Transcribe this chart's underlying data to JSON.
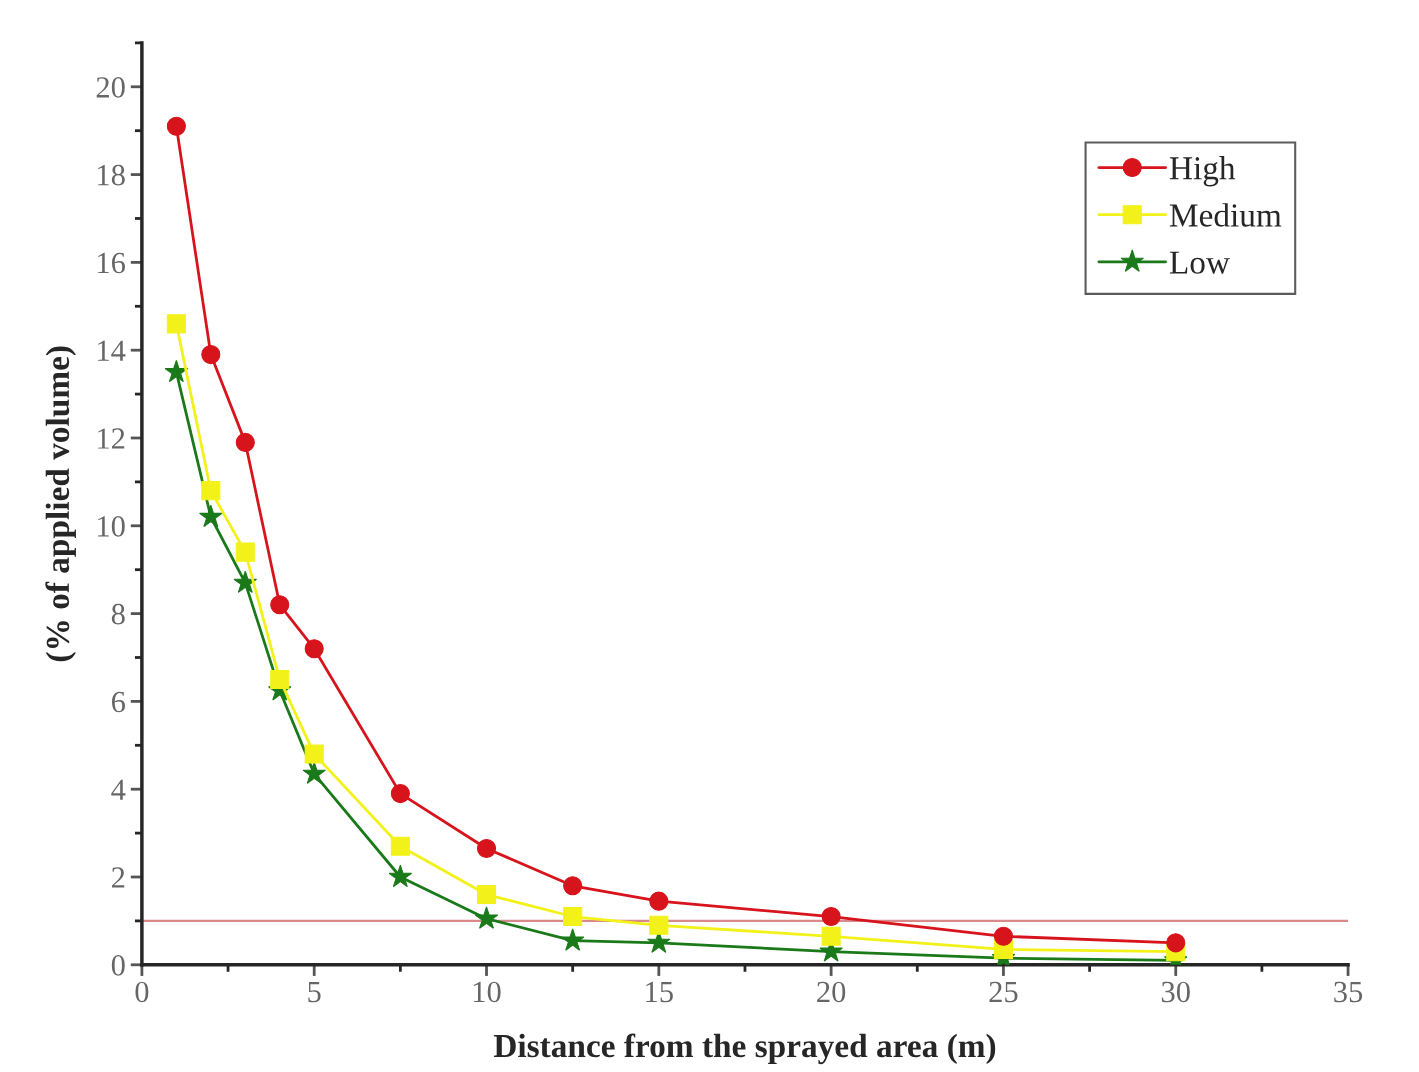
{
  "chart_data": {
    "type": "line",
    "xlabel": "Distance from the sprayed area (m)",
    "ylabel": "(% of applied volume)",
    "x": [
      1,
      2,
      3,
      4,
      5,
      7.5,
      10,
      12.5,
      15,
      20,
      25,
      30
    ],
    "series": [
      {
        "name": "High",
        "color": "#d7141c",
        "marker": "circle",
        "values": [
          19.1,
          13.9,
          11.9,
          8.2,
          7.2,
          3.9,
          2.65,
          1.8,
          1.45,
          1.1,
          0.65,
          0.5
        ]
      },
      {
        "name": "Medium",
        "color": "#f2f21a",
        "marker": "square",
        "values": [
          14.6,
          10.8,
          9.4,
          6.5,
          4.8,
          2.7,
          1.6,
          1.1,
          0.9,
          0.65,
          0.35,
          0.3
        ]
      },
      {
        "name": "Low",
        "color": "#1a7a1a",
        "marker": "star",
        "values": [
          13.5,
          10.2,
          8.7,
          6.25,
          4.35,
          2.0,
          1.05,
          0.55,
          0.5,
          0.3,
          0.15,
          0.1
        ]
      }
    ],
    "xlim": [
      0,
      35
    ],
    "xticks": [
      0,
      5,
      10,
      15,
      20,
      25,
      30,
      35
    ],
    "ylim": [
      0,
      21
    ],
    "yticks": [
      0,
      2,
      4,
      6,
      8,
      10,
      12,
      14,
      16,
      18,
      20
    ],
    "ref_lines": [
      {
        "axis": "y",
        "value": 1,
        "color": "#d88a8a"
      }
    ],
    "legend": "top right",
    "grid": false,
    "line_style": "solid"
  }
}
